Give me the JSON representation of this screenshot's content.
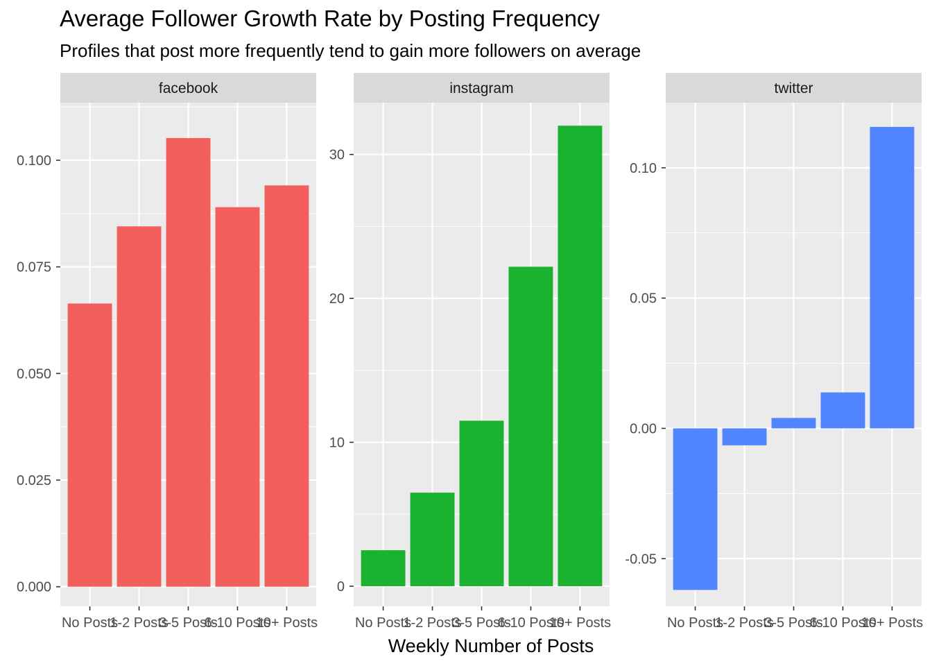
{
  "title": "Average Follower Growth Rate by Posting Frequency",
  "subtitle": "Profiles that post more frequently tend to gain more followers on average",
  "chart_data": {
    "type": "bar",
    "title": "Average Follower Growth Rate by Posting Frequency",
    "subtitle": "Profiles that post more frequently tend to gain more followers on average",
    "xlabel": "Weekly Number of Posts",
    "ylabel": "",
    "categories": [
      "No Posts",
      "1-2 Posts",
      "3-5 Posts",
      "6-10 Posts",
      "10+ Posts"
    ],
    "grid": true,
    "facets": [
      {
        "name": "facebook",
        "color": "#F25F5C",
        "values": [
          0.0664,
          0.0845,
          0.1052,
          0.089,
          0.0941
        ],
        "ylim": [
          -0.0046,
          0.1135
        ],
        "yticks": [
          0.0,
          0.025,
          0.05,
          0.075,
          0.1
        ],
        "yticklabels": [
          "0.000",
          "0.025",
          "0.050",
          "0.075",
          "0.100"
        ]
      },
      {
        "name": "instagram",
        "color": "#1AB22F",
        "values": [
          2.5,
          6.5,
          11.5,
          22.2,
          32.0
        ],
        "ylim": [
          -1.4,
          33.6
        ],
        "yticks": [
          0,
          10,
          20,
          30
        ],
        "yticklabels": [
          "0",
          "10",
          "20",
          "30"
        ]
      },
      {
        "name": "twitter",
        "color": "#5085FF",
        "values": [
          -0.062,
          -0.0065,
          0.004,
          0.0138,
          0.1157
        ],
        "ylim": [
          -0.0683,
          0.125
        ],
        "yticks": [
          -0.05,
          0.0,
          0.05,
          0.1
        ],
        "yticklabels": [
          "-0.05",
          "0.00",
          "0.05",
          "0.10"
        ]
      }
    ]
  }
}
